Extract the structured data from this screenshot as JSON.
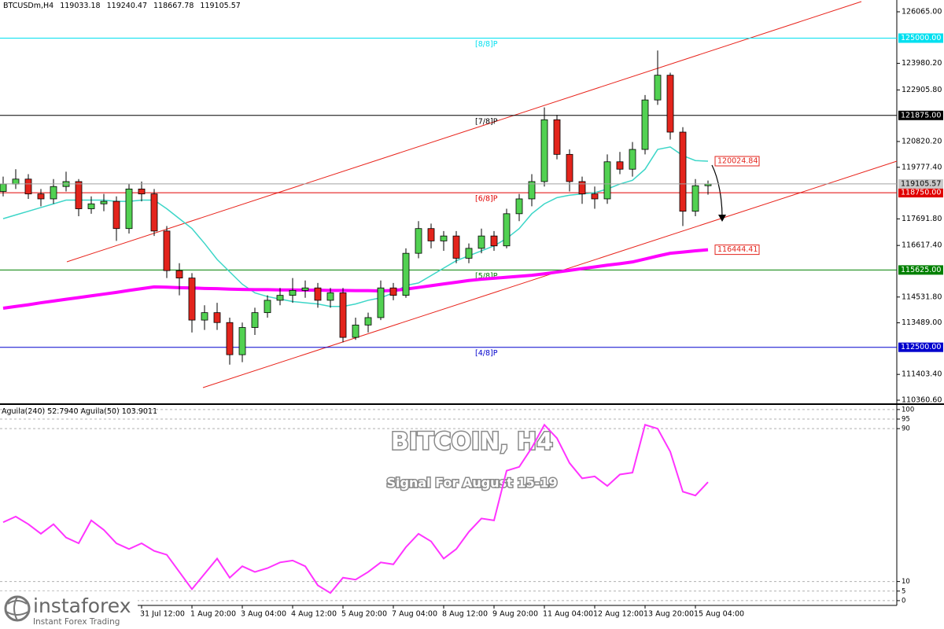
{
  "chart_data": [
    {
      "type": "candlestick",
      "title": "BTCUSDm,H4",
      "categories": [
        null,
        null,
        null,
        null,
        null,
        null,
        null,
        null,
        null,
        null,
        null,
        "31 Jul 12:00",
        null,
        null,
        null,
        "1 Aug 20:00",
        null,
        null,
        null,
        "3 Aug 04:00",
        null,
        null,
        null,
        "4 Aug 12:00",
        null,
        null,
        null,
        "5 Aug 20:00",
        null,
        null,
        null,
        "7 Aug 04:00",
        null,
        null,
        null,
        "8 Aug 12:00",
        null,
        null,
        null,
        "9 Aug 20:00",
        null,
        null,
        null,
        "11 Aug 04:00",
        null,
        null,
        null,
        "12 Aug 12:00",
        null,
        null,
        null,
        "13 Aug 20:00",
        null,
        null,
        null,
        "15 Aug 04:00",
        null
      ],
      "candles": [
        [
          118800,
          119400,
          118600,
          119100
        ],
        [
          119100,
          119700,
          118900,
          119300
        ],
        [
          119300,
          119500,
          118500,
          118700
        ],
        [
          118700,
          118900,
          118200,
          118500
        ],
        [
          118500,
          119300,
          118300,
          119000
        ],
        [
          119000,
          119600,
          118800,
          119200
        ],
        [
          119200,
          119300,
          117800,
          118100
        ],
        [
          118100,
          118600,
          117900,
          118300
        ],
        [
          118300,
          118700,
          118000,
          118400
        ],
        [
          118400,
          118600,
          116800,
          117300
        ],
        [
          117300,
          119100,
          117100,
          118900
        ],
        [
          118900,
          119200,
          118400,
          118700
        ],
        [
          118700,
          118900,
          117000,
          117200
        ],
        [
          117200,
          117400,
          115300,
          115600
        ],
        [
          115600,
          115900,
          114600,
          115300
        ],
        [
          115300,
          115500,
          113100,
          113600
        ],
        [
          113600,
          114200,
          113200,
          113900
        ],
        [
          113900,
          114300,
          113200,
          113500
        ],
        [
          113500,
          113700,
          111800,
          112200
        ],
        [
          112200,
          113500,
          111900,
          113300
        ],
        [
          113300,
          114100,
          113000,
          113900
        ],
        [
          113900,
          114600,
          113700,
          114400
        ],
        [
          114400,
          114900,
          114200,
          114600
        ],
        [
          114600,
          115300,
          114300,
          114800
        ],
        [
          114800,
          115200,
          114500,
          114900
        ],
        [
          114900,
          115100,
          114100,
          114400
        ],
        [
          114400,
          114900,
          114100,
          114700
        ],
        [
          114700,
          114900,
          112700,
          112900
        ],
        [
          112900,
          113700,
          112800,
          113400
        ],
        [
          113400,
          113900,
          113100,
          113700
        ],
        [
          113700,
          115200,
          113600,
          114900
        ],
        [
          114900,
          115100,
          114400,
          114600
        ],
        [
          114600,
          116500,
          114500,
          116300
        ],
        [
          116300,
          117600,
          116100,
          117300
        ],
        [
          117300,
          117500,
          116500,
          116800
        ],
        [
          116800,
          117200,
          116400,
          117000
        ],
        [
          117000,
          117200,
          115900,
          116100
        ],
        [
          116100,
          116700,
          115900,
          116500
        ],
        [
          116500,
          117300,
          116300,
          117000
        ],
        [
          117000,
          117200,
          116400,
          116600
        ],
        [
          116600,
          118100,
          116500,
          117900
        ],
        [
          117900,
          118700,
          117600,
          118500
        ],
        [
          118500,
          119500,
          118200,
          119200
        ],
        [
          119200,
          122200,
          119000,
          121700
        ],
        [
          121700,
          121900,
          120100,
          120300
        ],
        [
          120300,
          120500,
          118800,
          119200
        ],
        [
          119200,
          119400,
          118300,
          118700
        ],
        [
          118700,
          119000,
          118100,
          118500
        ],
        [
          118500,
          120300,
          118300,
          120000
        ],
        [
          120000,
          120400,
          119500,
          119700
        ],
        [
          119700,
          120800,
          119400,
          120500
        ],
        [
          120500,
          122700,
          120300,
          122500
        ],
        [
          122500,
          124500,
          122300,
          123500
        ],
        [
          123500,
          123600,
          120900,
          121200
        ],
        [
          121200,
          121400,
          117400,
          118000
        ],
        [
          118000,
          119300,
          117800,
          119033.18
        ],
        [
          119033.18,
          119240.47,
          118667.78,
          119105.57
        ]
      ],
      "up_color": "#52d152",
      "down_color": "#e3241c",
      "ylim": [
        110233,
        126478
      ],
      "yticks": [
        {
          "value": 126065,
          "label": "126065.00"
        },
        {
          "value": 123980.2,
          "label": "123980.20"
        },
        {
          "value": 122905.8,
          "label": "122905.80"
        },
        {
          "value": 120820.2,
          "label": "120820.20"
        },
        {
          "value": 119777.4,
          "label": "119777.40"
        },
        {
          "value": 117691.8,
          "label": "117691.80"
        },
        {
          "value": 116617.4,
          "label": "116617.40"
        },
        {
          "value": 114531.8,
          "label": "114531.80"
        },
        {
          "value": 113489,
          "label": "113489.00"
        },
        {
          "value": 111403.4,
          "label": "111403.40"
        },
        {
          "value": 110360.6,
          "label": "110360.60"
        }
      ],
      "levels": [
        {
          "name": "[8/8]P",
          "value": 125000,
          "label": "125000.00",
          "color": "#00e0f0"
        },
        {
          "name": "[7/8]P",
          "value": 121875,
          "label": "121875.00",
          "color": "#000000"
        },
        {
          "name": "[6/8]P",
          "value": 118750,
          "label": "118750.00",
          "color": "#e00000"
        },
        {
          "name": "[5/8]P",
          "value": 115625,
          "label": "115625.00",
          "color": "#008000"
        },
        {
          "name": "[4/8]P",
          "value": 112500,
          "label": "112500.00",
          "color": "#0000cd"
        }
      ],
      "series": [
        {
          "color": "#3dd6c8",
          "values": [
            117700,
            117850,
            118000,
            118150,
            118300,
            118450,
            118450,
            118450,
            118450,
            118400,
            118400,
            118450,
            118450,
            118100,
            117700,
            117300,
            116700,
            116050,
            115550,
            115050,
            114700,
            114550,
            114450,
            114350,
            114300,
            114250,
            114150,
            114150,
            114250,
            114400,
            114500,
            114700,
            115000,
            115100,
            115400,
            115700,
            116000,
            116200,
            116400,
            116600,
            116900,
            117300,
            117900,
            118300,
            118550,
            118650,
            118700,
            118750,
            118900,
            119100,
            119250,
            119700,
            120500,
            120600,
            120250,
            120050,
            120024.84
          ]
        },
        {
          "color": "#ff00ff",
          "values": [
            114080,
            114150,
            114220,
            114300,
            114370,
            114440,
            114510,
            114580,
            114650,
            114720,
            114800,
            114870,
            114940,
            114930,
            114910,
            114900,
            114880,
            114870,
            114850,
            114840,
            114830,
            114830,
            114820,
            114820,
            114810,
            114810,
            114800,
            114800,
            114790,
            114790,
            114780,
            114800,
            114850,
            114920,
            114990,
            115060,
            115130,
            115200,
            115250,
            115290,
            115330,
            115370,
            115410,
            115470,
            115540,
            115610,
            115680,
            115750,
            115820,
            115880,
            115950,
            116070,
            116190,
            116300,
            116350,
            116400,
            116444.41
          ]
        }
      ]
    },
    {
      "type": "line",
      "title": "Aguila(240) 52.7940  Aguila(50) 103.9011",
      "series": [
        {
          "color": "#ff33ff",
          "values": [
            41,
            44,
            40,
            35,
            40,
            33,
            30,
            42,
            37,
            30,
            27,
            30,
            26,
            24,
            15,
            6,
            14,
            22,
            12,
            18,
            15,
            17,
            20,
            21,
            18,
            8,
            4,
            12,
            11,
            15,
            20,
            19,
            28,
            35,
            31,
            22,
            27,
            36,
            43,
            42,
            68,
            70,
            80,
            92,
            85,
            72,
            64,
            65,
            60,
            66,
            67,
            92,
            90,
            78,
            57,
            55,
            62
          ]
        }
      ],
      "ylim": [
        -2.5,
        102
      ],
      "yticks": [
        100,
        95,
        90,
        10,
        5,
        0
      ],
      "grid": true
    }
  ],
  "watermark": {
    "title": "BITCOIN, H4",
    "subtitle": "Signal For August 15-19"
  },
  "logo": {
    "name": "instaforex",
    "tagline": "Instant Forex Trading"
  }
}
